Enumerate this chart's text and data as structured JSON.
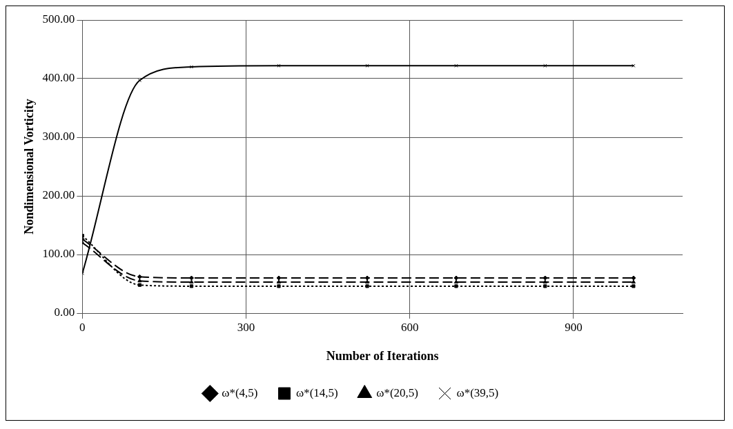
{
  "chart_data": {
    "type": "line",
    "xlabel": "Number of Iterations",
    "ylabel": "Nondimensional Vorticity",
    "x": [
      0,
      105,
      200,
      360,
      522,
      685,
      848,
      1010
    ],
    "series": [
      {
        "name": "ω*(4,5)",
        "color": "#000000",
        "marker": "diamond",
        "line_style": "dashed",
        "values": [
          126,
          62,
          60,
          60,
          60,
          60,
          60,
          60
        ]
      },
      {
        "name": "ω*(14,5)",
        "color": "#000000",
        "marker": "square",
        "line_style": "dotted",
        "values": [
          132,
          48,
          46,
          46,
          46,
          46,
          46,
          46
        ]
      },
      {
        "name": "ω*(20,5)",
        "color": "#000000",
        "marker": "triangle",
        "line_style": "dashed",
        "values": [
          120,
          55,
          53,
          53,
          53,
          53,
          53,
          53
        ]
      },
      {
        "name": "ω*(39,5)",
        "color": "#000000",
        "marker": "cross",
        "line_style": "solid",
        "values": [
          68,
          397,
          420,
          422,
          422,
          422,
          422,
          422
        ]
      }
    ],
    "xlim": [
      0,
      1100
    ],
    "xticks": [
      0,
      300,
      600,
      900
    ],
    "ylim": [
      0,
      500
    ],
    "yticks": [
      {
        "value": 0,
        "label": "0.00"
      },
      {
        "value": 100,
        "label": "100.00"
      },
      {
        "value": 200,
        "label": "200.00"
      },
      {
        "value": 300,
        "label": "300.00"
      },
      {
        "value": 400,
        "label": "400.00"
      },
      {
        "value": 500,
        "label": "500.00"
      }
    ],
    "grid": true,
    "legend": "bottom"
  }
}
